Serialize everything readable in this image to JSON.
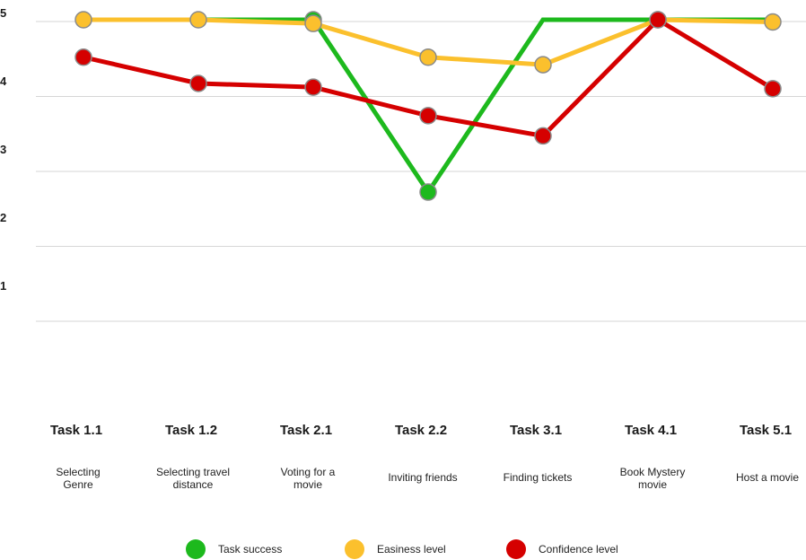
{
  "chart_data": {
    "type": "line",
    "title": "",
    "xlabel": "",
    "ylabel": "",
    "ylim": [
      0,
      5
    ],
    "yticks": [
      "1",
      "2",
      "3",
      "4",
      "5"
    ],
    "categories": [
      {
        "task": "Task 1.1",
        "desc": [
          "Selecting",
          "Genre"
        ]
      },
      {
        "task": "Task 1.2",
        "desc": [
          "Selecting travel",
          "distance"
        ]
      },
      {
        "task": "Task 2.1",
        "desc": [
          "Voting for a",
          "movie"
        ]
      },
      {
        "task": "Task 2.2",
        "desc": [
          "Inviting friends"
        ]
      },
      {
        "task": "Task 3.1",
        "desc": [
          "Finding tickets"
        ]
      },
      {
        "task": "Task 4.1",
        "desc": [
          "Book Mystery",
          "movie"
        ]
      },
      {
        "task": "Task 5.1",
        "desc": [
          "Host a movie"
        ]
      }
    ],
    "series": [
      {
        "name": "Task success",
        "color": "#1db91d",
        "values": [
          5.0,
          5.0,
          5.0,
          2.7,
          5.0,
          5.0,
          5.0
        ],
        "markers": [
          false,
          false,
          true,
          true,
          false,
          false,
          false
        ]
      },
      {
        "name": "Easiness level",
        "color": "#fbc02d",
        "values": [
          5.0,
          5.0,
          4.95,
          4.5,
          4.4,
          5.0,
          4.97
        ],
        "markers": [
          true,
          true,
          true,
          true,
          true,
          true,
          true
        ]
      },
      {
        "name": "Confidence level",
        "color": "#d50000",
        "values": [
          4.5,
          4.15,
          4.1,
          3.72,
          3.45,
          5.0,
          4.08
        ],
        "markers": [
          true,
          true,
          true,
          true,
          true,
          true,
          true
        ]
      }
    ],
    "legend_position": "bottom-center"
  }
}
